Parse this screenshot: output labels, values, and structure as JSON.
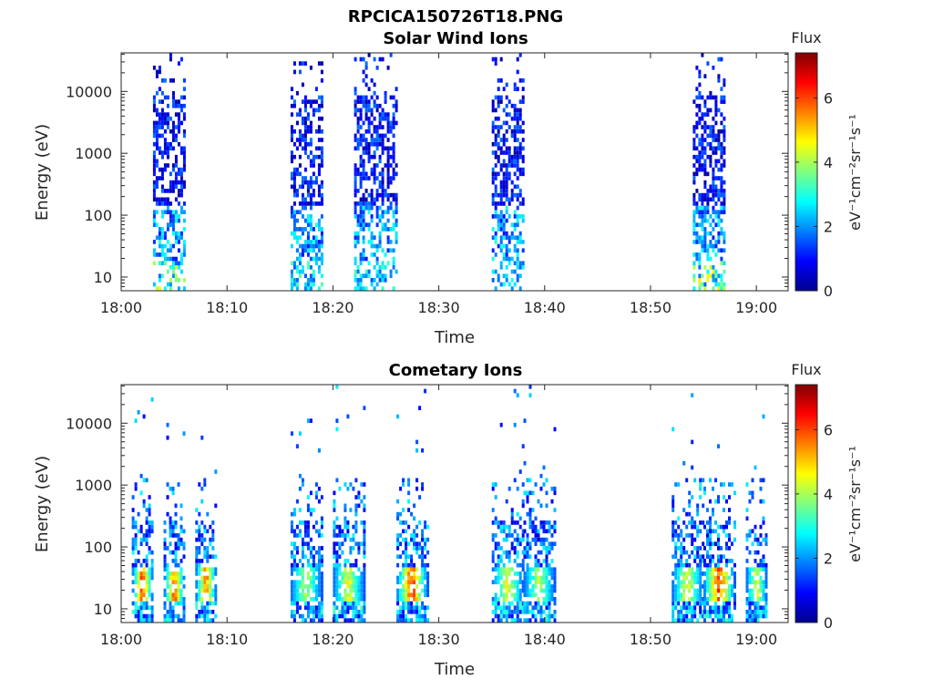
{
  "figure_title": "RPCICA150726T18.PNG",
  "chart_data": [
    {
      "type": "heatmap",
      "title": "Solar Wind Ions",
      "xlabel": "Time",
      "ylabel": "Energy (eV)",
      "y_scale": "log",
      "ylim": [
        6,
        42000
      ],
      "x_ticks": [
        "18:00",
        "18:10",
        "18:20",
        "18:30",
        "18:40",
        "18:50",
        "19:00"
      ],
      "y_ticks": [
        "10",
        "100",
        "1000",
        "10000"
      ],
      "colorbar": {
        "title": "Flux",
        "label": "eV⁻¹cm⁻²sr⁻¹s⁻¹",
        "ticks": [
          "0",
          "2",
          "4",
          "6"
        ],
        "range": [
          0,
          7.4
        ],
        "colormap": "jet"
      },
      "bursts": [
        {
          "start": "18:03",
          "end": "18:06",
          "max_flux": 4.5,
          "ion_type": "solar"
        },
        {
          "start": "18:16",
          "end": "18:19",
          "max_flux": 3.5,
          "ion_type": "solar"
        },
        {
          "start": "18:22",
          "end": "18:26",
          "max_flux": 3.3,
          "ion_type": "solar"
        },
        {
          "start": "18:35",
          "end": "18:38",
          "max_flux": 3.0,
          "ion_type": "solar"
        },
        {
          "start": "18:54",
          "end": "18:57",
          "max_flux": 4.8,
          "ion_type": "solar"
        }
      ]
    },
    {
      "type": "heatmap",
      "title": "Cometary Ions",
      "xlabel": "Time",
      "ylabel": "Energy (eV)",
      "y_scale": "log",
      "ylim": [
        6,
        42000
      ],
      "x_ticks": [
        "18:00",
        "18:10",
        "18:20",
        "18:30",
        "18:40",
        "18:50",
        "19:00"
      ],
      "y_ticks": [
        "10",
        "100",
        "1000",
        "10000"
      ],
      "colorbar": {
        "title": "Flux",
        "label": "eV⁻¹cm⁻²sr⁻¹s⁻¹",
        "ticks": [
          "0",
          "2",
          "4",
          "6"
        ],
        "range": [
          0,
          7.4
        ],
        "colormap": "jet"
      },
      "bursts": [
        {
          "start": "18:01",
          "end": "18:03",
          "max_flux": 6.8,
          "ion_type": "comet"
        },
        {
          "start": "18:04",
          "end": "18:06",
          "max_flux": 6.5,
          "ion_type": "comet"
        },
        {
          "start": "18:07",
          "end": "18:09",
          "max_flux": 6.3,
          "ion_type": "comet"
        },
        {
          "start": "18:16",
          "end": "18:19",
          "max_flux": 4.5,
          "ion_type": "comet"
        },
        {
          "start": "18:20",
          "end": "18:23",
          "max_flux": 5.0,
          "ion_type": "comet"
        },
        {
          "start": "18:26",
          "end": "18:29",
          "max_flux": 6.8,
          "ion_type": "comet"
        },
        {
          "start": "18:35",
          "end": "18:38",
          "max_flux": 5.0,
          "ion_type": "comet"
        },
        {
          "start": "18:38",
          "end": "18:41",
          "max_flux": 4.5,
          "ion_type": "comet"
        },
        {
          "start": "18:52",
          "end": "18:55",
          "max_flux": 5.0,
          "ion_type": "comet"
        },
        {
          "start": "18:55",
          "end": "18:58",
          "max_flux": 7.0,
          "ion_type": "comet"
        },
        {
          "start": "18:59",
          "end": "19:01",
          "max_flux": 5.0,
          "ion_type": "comet"
        }
      ]
    }
  ]
}
